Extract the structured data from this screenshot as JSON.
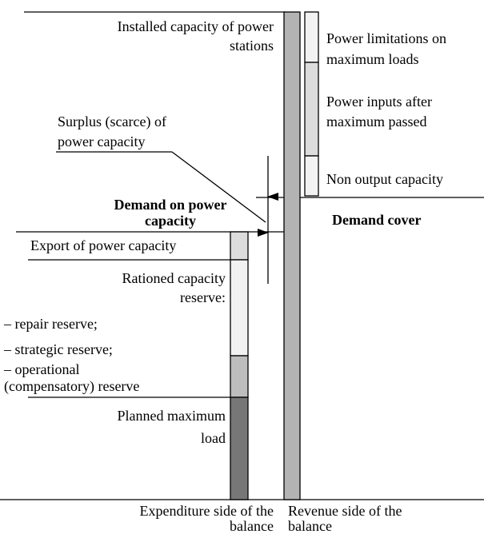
{
  "labels": {
    "installed_capacity": [
      "Installed capacity of power",
      "stations"
    ],
    "power_limitations": [
      "Power limitations on",
      "maximum loads"
    ],
    "power_inputs": [
      "Power inputs after",
      "maximum passed"
    ],
    "non_output": [
      "Non output capacity"
    ],
    "surplus": [
      "Surplus (scarce) of",
      "power capacity"
    ],
    "demand": [
      "Demand on power",
      "capacity"
    ],
    "demand_cover": [
      "Demand cover"
    ],
    "export": [
      "Export of power capacity"
    ],
    "rationed": [
      "Rationed capacity",
      "reserve:"
    ],
    "reserves": [
      "– repair reserve;",
      "– strategic reserve;",
      "– operational",
      "(compensatory) reserve"
    ],
    "planned": [
      "Planned maximum",
      "load"
    ],
    "expenditure": [
      "Expenditure side of the",
      "balance"
    ],
    "revenue": [
      "Revenue side of the",
      "balance"
    ]
  }
}
